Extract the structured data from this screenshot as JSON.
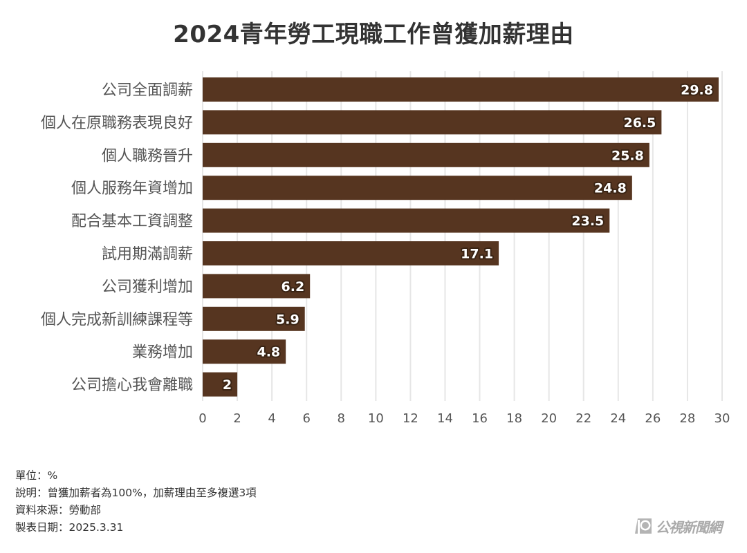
{
  "chart_data": {
    "type": "bar",
    "orientation": "horizontal",
    "title": "2024青年勞工現職工作曾獲加薪理由",
    "categories": [
      "公司全面調薪",
      "個人在原職務表現良好",
      "個人職務晉升",
      "個人服務年資增加",
      "配合基本工資調整",
      "試用期滿調薪",
      "公司獲利增加",
      "個人完成新訓練課程等",
      "業務增加",
      "公司擔心我會離職"
    ],
    "values": [
      29.8,
      26.5,
      25.8,
      24.8,
      23.5,
      17.1,
      6.2,
      5.9,
      4.8,
      2
    ],
    "value_labels": [
      "29.8",
      "26.5",
      "25.8",
      "24.8",
      "23.5",
      "17.1",
      "6.2",
      "5.9",
      "4.8",
      "2"
    ],
    "xlim": [
      0,
      30
    ],
    "xticks": [
      "0",
      "2",
      "4",
      "6",
      "8",
      "10",
      "12",
      "14",
      "16",
      "18",
      "20",
      "22",
      "24",
      "26",
      "28",
      "30"
    ],
    "xlabel": "",
    "ylabel": "",
    "grid": true,
    "bar_color": "#563520",
    "grid_color": "#e6e6e6"
  },
  "notes": {
    "unit": "單位：%",
    "description": "說明：曾獲加薪者為100%，加薪理由至多複選3項",
    "source": "資料來源：勞動部",
    "date": "製表日期：2025.3.31"
  },
  "logo": {
    "text": "公視新聞網"
  }
}
